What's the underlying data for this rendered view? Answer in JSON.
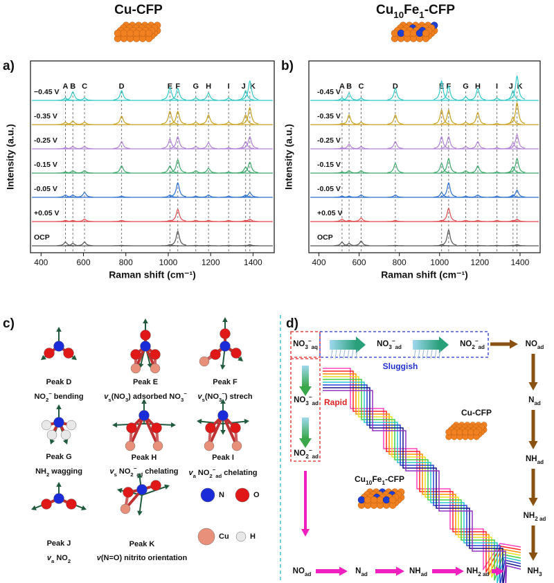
{
  "chart_data": [
    {
      "type": "line",
      "label": "a)",
      "title": [
        "Cu-CFP"
      ],
      "xlabel": "Raman shift (cm⁻¹)",
      "ylabel": "Intensity (a.u.)",
      "xlim": [
        350,
        1500
      ],
      "xticks": [
        400,
        600,
        800,
        1000,
        1200,
        1400
      ],
      "peak_names": [
        "A",
        "B",
        "C",
        "D",
        "E",
        "F",
        "G",
        "H",
        "I",
        "J",
        "K"
      ],
      "peak_positions": [
        515,
        550,
        605,
        780,
        1008,
        1045,
        1130,
        1190,
        1285,
        1365,
        1385
      ],
      "series": [
        {
          "name": "−0.45 V",
          "color": "#2ec8c8",
          "heights": [
            0.1,
            0.35,
            0.1,
            0.4,
            0.55,
            0.5,
            0.1,
            0.3,
            0.1,
            0.4,
            0.8
          ]
        },
        {
          "name": "-0.35 V",
          "color": "#c9a01e",
          "heights": [
            0.1,
            0.15,
            0.1,
            0.35,
            0.55,
            0.55,
            0.1,
            0.4,
            0.1,
            0.4,
            0.7
          ]
        },
        {
          "name": "-0.25 V",
          "color": "#b07fd8",
          "heights": [
            0.05,
            0.1,
            0.1,
            0.3,
            0.4,
            0.5,
            0.1,
            0.25,
            0.05,
            0.3,
            0.5
          ]
        },
        {
          "name": "-0.15 V",
          "color": "#3aa86a",
          "heights": [
            0.05,
            0.1,
            0.1,
            0.3,
            0.3,
            0.55,
            0.1,
            0.2,
            0.05,
            0.25,
            0.45
          ]
        },
        {
          "name": "-0.05 V",
          "color": "#2a6fd0",
          "heights": [
            0.1,
            0.1,
            0.2,
            0.05,
            0.1,
            0.6,
            0.05,
            0.1,
            0.05,
            0.1,
            0.2
          ]
        },
        {
          "name": "+0.05 V",
          "color": "#e04848",
          "heights": [
            0.05,
            0.05,
            0.1,
            0.05,
            0.05,
            0.5,
            0.05,
            0.05,
            0.05,
            0.05,
            0.1
          ]
        },
        {
          "name": "OCP",
          "color": "#555555",
          "heights": [
            0.15,
            0.1,
            0.15,
            0.02,
            0.05,
            0.6,
            0.02,
            0.02,
            0.02,
            0.02,
            0.05
          ]
        }
      ]
    },
    {
      "type": "line",
      "label": "b)",
      "title": [
        "Cu",
        {
          "sub": "10"
        },
        "Fe",
        {
          "sub": "1"
        },
        "-CFP"
      ],
      "xlabel": "Raman shift (cm⁻¹)",
      "ylabel": "Intensity (a.u.)",
      "xlim": [
        350,
        1500
      ],
      "xticks": [
        400,
        600,
        800,
        1000,
        1200,
        1400
      ],
      "peak_names": [
        "A",
        "B",
        "C",
        "D",
        "E",
        "F",
        "G",
        "H",
        "I",
        "J",
        "K"
      ],
      "peak_positions": [
        515,
        550,
        610,
        780,
        1010,
        1045,
        1130,
        1190,
        1285,
        1365,
        1385
      ],
      "series": [
        {
          "name": "-0.45 V",
          "color": "#2ec8c8",
          "heights": [
            0.1,
            0.3,
            0.1,
            0.5,
            0.8,
            0.6,
            0.15,
            0.5,
            0.1,
            0.4,
            1.0
          ]
        },
        {
          "name": "-0.35 V",
          "color": "#c9a01e",
          "heights": [
            0.05,
            0.4,
            0.1,
            0.4,
            0.6,
            0.6,
            0.1,
            0.5,
            0.05,
            0.3,
            0.9
          ]
        },
        {
          "name": "-0.25 V",
          "color": "#b07fd8",
          "heights": [
            0.05,
            0.2,
            0.1,
            0.3,
            0.5,
            0.5,
            0.1,
            0.3,
            0.05,
            0.25,
            0.6
          ]
        },
        {
          "name": "-0.15 V",
          "color": "#3aa86a",
          "heights": [
            0.05,
            0.1,
            0.1,
            0.4,
            0.4,
            0.6,
            0.1,
            0.3,
            0.05,
            0.25,
            0.6
          ]
        },
        {
          "name": "-0.05 V",
          "color": "#2a6fd0",
          "heights": [
            0.05,
            0.05,
            0.1,
            0.1,
            0.2,
            0.6,
            0.05,
            0.1,
            0.05,
            0.1,
            0.3
          ]
        },
        {
          "name": "+0.05 V",
          "color": "#e04848",
          "heights": [
            0.1,
            0.05,
            0.15,
            0.05,
            0.05,
            0.55,
            0.05,
            0.05,
            0.05,
            0.05,
            0.1
          ]
        },
        {
          "name": "OCP",
          "color": "#555555",
          "heights": [
            0.15,
            0.1,
            0.2,
            0.02,
            0.05,
            0.65,
            0.02,
            0.02,
            0.02,
            0.02,
            0.05
          ]
        }
      ]
    }
  ],
  "panel_c": {
    "label": "c)",
    "items": [
      {
        "name": "Peak D",
        "desc": [
          "NO",
          {
            "sub": "2"
          },
          {
            "sup": "−"
          },
          " bending"
        ]
      },
      {
        "name": "Peak E",
        "desc": [
          {
            "i": "v"
          },
          {
            "sub": "s"
          },
          "(NO",
          {
            "sub": "3"
          },
          ") adsorbed NO",
          {
            "sub": "3"
          },
          {
            "sup": "−"
          }
        ]
      },
      {
        "name": "Peak F",
        "desc": [
          {
            "i": "v"
          },
          {
            "sub": "s"
          },
          "(NO",
          {
            "sub": "3"
          },
          {
            "sup": "−"
          },
          ") strech"
        ]
      },
      {
        "name": "Peak G",
        "desc": [
          "NH",
          {
            "sub": "2"
          },
          " wagging"
        ]
      },
      {
        "name": "Peak H",
        "desc": [
          {
            "i": "v"
          },
          {
            "sub": "s"
          },
          " NO",
          {
            "sub": "2"
          },
          {
            "sup": "−"
          },
          {
            "sub": "ad"
          },
          " chelating"
        ]
      },
      {
        "name": "Peak I",
        "desc": [
          {
            "i": "v"
          },
          {
            "sub": "a"
          },
          " NO",
          {
            "sub": "2"
          },
          {
            "sup": "−"
          },
          {
            "sub": "ad"
          },
          " chelating"
        ]
      },
      {
        "name": "Peak J",
        "desc": [
          {
            "i": "v"
          },
          {
            "sub": "a"
          },
          " NO",
          {
            "sub": "2"
          }
        ]
      },
      {
        "name": "Peak K",
        "desc": [
          {
            "i": "v"
          },
          "(N=O) nitrito orientation"
        ]
      }
    ],
    "legend": [
      "N",
      "O",
      "Cu",
      "H"
    ]
  },
  "panel_d": {
    "label": "d)",
    "no3_aq": [
      "NO",
      {
        "sub": "3"
      },
      {
        "sup": "−"
      },
      {
        "sub": "aq"
      }
    ],
    "top_no3_ad": [
      "NO",
      {
        "sub": "3"
      },
      {
        "sup": "−"
      },
      {
        "sub": "ad"
      }
    ],
    "top_no2_ad": [
      "NO",
      {
        "sub": "2"
      },
      {
        "sup": "−"
      },
      {
        "sub": "ad"
      }
    ],
    "left_no3_ad": [
      "NO",
      {
        "sub": "3"
      },
      {
        "sup": "−"
      },
      {
        "sub": "ad"
      }
    ],
    "left_no2_ad": [
      "NO",
      {
        "sub": "2"
      },
      {
        "sup": "−"
      },
      {
        "sub": "ad"
      }
    ],
    "sluggish": "Sluggish",
    "rapid": "Rapid",
    "cu_label": [
      "Cu-CFP"
    ],
    "cufe_label": [
      "Cu",
      {
        "sub": "10"
      },
      "Fe",
      {
        "sub": "1"
      },
      "-CFP"
    ],
    "right_path": [
      [
        "NO",
        {
          "sub": "ad"
        }
      ],
      [
        "N",
        {
          "sub": "ad"
        }
      ],
      [
        "NH",
        {
          "sub": "ad"
        }
      ],
      [
        "NH",
        {
          "sub": "2 ad"
        }
      ]
    ],
    "bottom_path": [
      [
        "NO",
        {
          "sub": "ad"
        }
      ],
      [
        "N",
        {
          "sub": "ad"
        }
      ],
      [
        "NH",
        {
          "sub": "ad"
        }
      ],
      [
        "NH",
        {
          "sub": "2 ad"
        }
      ]
    ],
    "product": [
      "NH",
      {
        "sub": "3"
      }
    ]
  }
}
